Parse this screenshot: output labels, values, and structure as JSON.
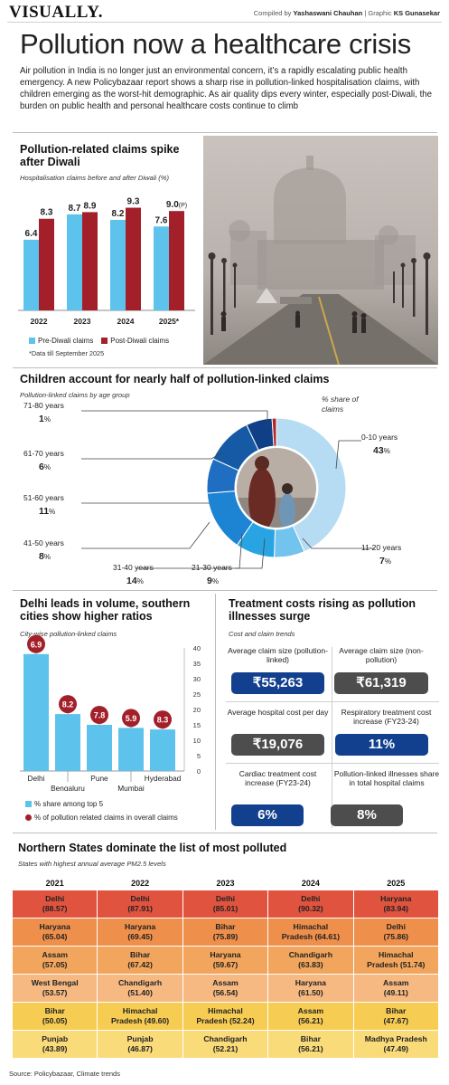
{
  "masthead": {
    "brand": "VISUALLY.",
    "compiled_by_label": "Compiled by",
    "compiled_by": "Yashaswani Chauhan",
    "graphic_label": "| Graphic",
    "graphic_by": "KS Gunasekar"
  },
  "headline": "Pollution now a healthcare crisis",
  "intro": "Air pollution in India is no longer just an environmental concern, it’s a rapidly escalating public health emergency. A new Policybazaar report shows a sharp rise in pollution-linked hospitalisation claims, with children emerging as the worst-hit demographic. As air quality dips every winter, especially post-Diwali, the burden on public health and personal healthcare costs continue to climb",
  "colors": {
    "pre": "#5ec3ec",
    "post": "#a3202a",
    "dark_blue": "#123f8e",
    "dark_gray": "#4d4d4d"
  },
  "chart_data": [
    {
      "type": "bar",
      "title": "Pollution-related claims spike after Diwali",
      "subtitle": "Hospitalisation claims before and after Diwali (%)",
      "categories": [
        "2022",
        "2023",
        "2024",
        "2025*"
      ],
      "series": [
        {
          "name": "Pre-Diwali claims",
          "values": [
            6.4,
            8.7,
            8.2,
            7.6
          ]
        },
        {
          "name": "Post-Diwali claims",
          "values": [
            8.3,
            8.9,
            9.3,
            9.0
          ]
        }
      ],
      "data_labels": {
        "pre": [
          "6.4",
          "8.7",
          "8.2",
          "7.6"
        ],
        "post": [
          "8.3",
          "8.9",
          "9.3",
          "9.0"
        ],
        "post_suffix": [
          "",
          "",
          "",
          "(P)"
        ]
      },
      "ylim": [
        0,
        10
      ],
      "legend_position": "bottom",
      "footnote": "*Data till September 2025"
    },
    {
      "type": "pie",
      "title": "Children account for nearly half of pollution-linked claims",
      "subtitle": "Pollution-linked claims by age group",
      "legend_title": "% share of claims",
      "slices": [
        {
          "label": "0-10 years",
          "value": 43
        },
        {
          "label": "11-20 years",
          "value": 7
        },
        {
          "label": "21-30 years",
          "value": 9
        },
        {
          "label": "31-40 years",
          "value": 14
        },
        {
          "label": "41-50 years",
          "value": 8
        },
        {
          "label": "51-60 years",
          "value": 11
        },
        {
          "label": "61-70 years",
          "value": 6
        },
        {
          "label": "71-80 years",
          "value": 1
        }
      ],
      "unit": "%"
    },
    {
      "type": "bar",
      "title": "Delhi leads in volume, southern cities show higher ratios",
      "subtitle": "City-wise pollution-linked claims",
      "categories": [
        "Delhi",
        "Bengaluru",
        "Pune",
        "Mumbai",
        "Hyderabad"
      ],
      "series": [
        {
          "name": "% share among top 5",
          "values": [
            38,
            18.5,
            15,
            14,
            13.5
          ]
        },
        {
          "name": "% of pollution related claims in overall claims",
          "values": [
            6.9,
            8.2,
            7.8,
            5.9,
            8.3
          ]
        }
      ],
      "ylim": [
        0,
        40
      ],
      "yticks": [
        0,
        5,
        10,
        15,
        20,
        25,
        30,
        35,
        40
      ],
      "legend_position": "bottom"
    },
    {
      "type": "table",
      "title": "Northern States dominate the list of most polluted",
      "subtitle": "States with highest annual average PM2.5 levels",
      "columns": [
        "2021",
        "2022",
        "2023",
        "2024",
        "2025"
      ],
      "rows": [
        [
          [
            "Delhi",
            "(88.57)"
          ],
          [
            "Delhi",
            "(87.91)"
          ],
          [
            "Delhi",
            "(85.01)"
          ],
          [
            "Delhi",
            "(90.32)"
          ],
          [
            "Haryana",
            "(83.94)"
          ]
        ],
        [
          [
            "Haryana",
            "(65.04)"
          ],
          [
            "Haryana",
            "(69.45)"
          ],
          [
            "Bihar",
            "(75.89)"
          ],
          [
            "Himachal",
            "Pradesh (64.61)"
          ],
          [
            "Delhi",
            "(75.86)"
          ]
        ],
        [
          [
            "Assam",
            "(57.05)"
          ],
          [
            "Bihar",
            "(67.42)"
          ],
          [
            "Haryana",
            "(59.67)"
          ],
          [
            "Chandigarh",
            "(63.83)"
          ],
          [
            "Himachal",
            "Pradesh (51.74)"
          ]
        ],
        [
          [
            "West Bengal",
            "(53.57)"
          ],
          [
            "Chandigarh",
            "(51.40)"
          ],
          [
            "Assam",
            "(56.54)"
          ],
          [
            "Haryana",
            "(61.50)"
          ],
          [
            "Assam",
            "(49.11)"
          ]
        ],
        [
          [
            "Bihar",
            "(50.05)"
          ],
          [
            "Himachal",
            "Pradesh (49.60)"
          ],
          [
            "Himachal",
            "Pradesh (52.24)"
          ],
          [
            "Assam",
            "(56.21)"
          ],
          [
            "Bihar",
            "(47.67)"
          ]
        ],
        [
          [
            "Punjab",
            "(43.89)"
          ],
          [
            "Punjab",
            "(46.87)"
          ],
          [
            "Chandigarh",
            "(52.21)"
          ],
          [
            "Bihar",
            "(56.21)"
          ],
          [
            "Madhya Pradesh",
            "(47.49)"
          ]
        ]
      ],
      "row_colors": [
        "#e0533f",
        "#ee8f4b",
        "#f2a55c",
        "#f6b981",
        "#f7cc52",
        "#fadb7a"
      ]
    }
  ],
  "treatment": {
    "title": "Treatment costs rising as pollution illnesses surge",
    "subtitle": "Cost and claim trends",
    "items": [
      {
        "label": "Average claim size (pollution-linked)",
        "value": "₹55,263"
      },
      {
        "label": "Average claim size (non-pollution)",
        "value": "₹61,319"
      },
      {
        "label": "Average hospital cost per day",
        "value": "₹19,076"
      },
      {
        "label": "Respiratory treatment cost increase (FY23-24)",
        "value": "11%"
      },
      {
        "label": "Cardiac treatment cost increase (FY23-24)",
        "value": "6%"
      },
      {
        "label": "Pollution-linked illnesses share in total hospital claims",
        "value": "8%"
      }
    ]
  },
  "source": "Source: Policybazaar, Climate trends"
}
